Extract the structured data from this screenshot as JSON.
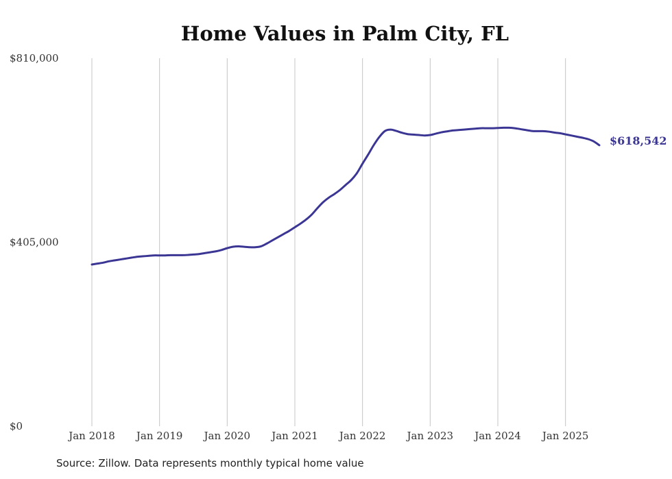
{
  "chart_data": {
    "type": "line",
    "title": "Home Values in Palm City, FL",
    "source": "Source: Zillow. Data represents monthly typical home value",
    "xlabel": "",
    "ylabel": "",
    "ylim": [
      0,
      810000
    ],
    "yticks": [
      0,
      405000,
      810000
    ],
    "ytick_labels": [
      "$0",
      "$405,000",
      "$810,000"
    ],
    "xlim": [
      "2018-01",
      "2025-07"
    ],
    "xticks": [
      "2018-01",
      "2019-01",
      "2020-01",
      "2021-01",
      "2022-01",
      "2023-01",
      "2024-01",
      "2025-01"
    ],
    "xtick_labels": [
      "Jan 2018",
      "Jan 2019",
      "Jan 2020",
      "Jan 2021",
      "Jan 2022",
      "Jan 2023",
      "Jan 2024",
      "Jan 2025"
    ],
    "grid": {
      "vertical": true,
      "horizontal": false
    },
    "color": "#3b3694",
    "end_label": "$618,542",
    "series": [
      {
        "x": [
          "2018-01",
          "2018-02",
          "2018-03",
          "2018-04",
          "2018-05",
          "2018-06",
          "2018-07",
          "2018-08",
          "2018-09",
          "2018-10",
          "2018-11",
          "2018-12",
          "2019-01",
          "2019-02",
          "2019-03",
          "2019-04",
          "2019-05",
          "2019-06",
          "2019-07",
          "2019-08",
          "2019-09",
          "2019-10",
          "2019-11",
          "2019-12",
          "2020-01",
          "2020-02",
          "2020-03",
          "2020-04",
          "2020-05",
          "2020-06",
          "2020-07",
          "2020-08",
          "2020-09",
          "2020-10",
          "2020-11",
          "2020-12",
          "2021-01",
          "2021-02",
          "2021-03",
          "2021-04",
          "2021-05",
          "2021-06",
          "2021-07",
          "2021-08",
          "2021-09",
          "2021-10",
          "2021-11",
          "2021-12",
          "2022-01",
          "2022-02",
          "2022-03",
          "2022-04",
          "2022-05",
          "2022-06",
          "2022-07",
          "2022-08",
          "2022-09",
          "2022-10",
          "2022-11",
          "2022-12",
          "2023-01",
          "2023-02",
          "2023-03",
          "2023-04",
          "2023-05",
          "2023-06",
          "2023-07",
          "2023-08",
          "2023-09",
          "2023-10",
          "2023-11",
          "2023-12",
          "2024-01",
          "2024-02",
          "2024-03",
          "2024-04",
          "2024-05",
          "2024-06",
          "2024-07",
          "2024-08",
          "2024-09",
          "2024-10",
          "2024-11",
          "2024-12",
          "2025-01",
          "2025-02",
          "2025-03",
          "2025-04",
          "2025-05",
          "2025-06",
          "2025-07"
        ],
        "values": [
          356000,
          358000,
          360000,
          363000,
          365000,
          367000,
          369000,
          371000,
          373000,
          374000,
          375000,
          376000,
          376000,
          376000,
          376500,
          376500,
          376500,
          377000,
          378000,
          379000,
          381000,
          383000,
          385000,
          388000,
          392000,
          395000,
          396000,
          395000,
          394000,
          394000,
          396000,
          402000,
          409000,
          416000,
          423000,
          430000,
          438000,
          446000,
          455000,
          466000,
          480000,
          493000,
          503000,
          511000,
          520000,
          531000,
          542000,
          557000,
          578000,
          598000,
          619000,
          637000,
          650000,
          653000,
          650000,
          646000,
          643000,
          642000,
          641000,
          640000,
          641000,
          644000,
          647000,
          649000,
          651000,
          652000,
          653000,
          654000,
          655000,
          656000,
          656000,
          656000,
          656500,
          657000,
          657000,
          656000,
          654000,
          652000,
          650000,
          649500,
          649500,
          648500,
          646500,
          645000,
          642500,
          640000,
          637500,
          635000,
          632000,
          627000,
          618542
        ]
      }
    ]
  }
}
